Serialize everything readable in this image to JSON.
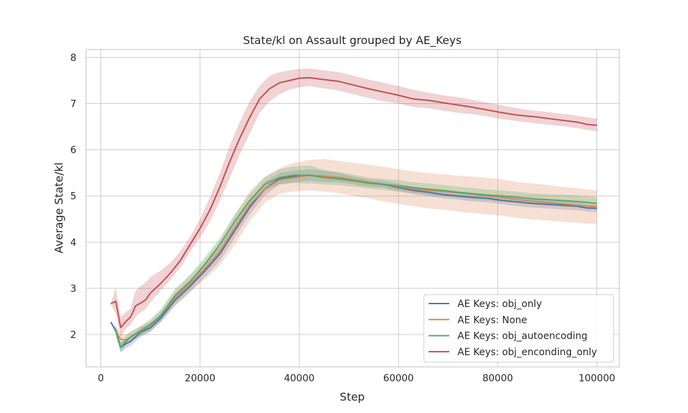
{
  "chart_data": {
    "type": "line",
    "title": "State/kl on Assault grouped by AE_Keys",
    "xlabel": "Step",
    "ylabel": "Average State/kl",
    "xlim": [
      -3000,
      104500
    ],
    "ylim": [
      1.3,
      8.17
    ],
    "xticks": [
      0,
      20000,
      40000,
      60000,
      80000,
      100000
    ],
    "yticks": [
      2,
      3,
      4,
      5,
      6,
      7,
      8
    ],
    "grid": true,
    "legend_position": "lower-right",
    "series": [
      {
        "name": "AE Keys: obj_only",
        "color": "#4c72b0",
        "x": [
          2000,
          3000,
          4000,
          5000,
          6000,
          8000,
          10000,
          12000,
          15000,
          18000,
          21000,
          24000,
          27000,
          30000,
          33000,
          36000,
          39000,
          42000,
          45000,
          48000,
          51000,
          54000,
          57000,
          60000,
          63000,
          66000,
          69000,
          72000,
          75000,
          78000,
          81000,
          84000,
          87000,
          90000,
          93000,
          96000,
          98000,
          100000
        ],
        "y": [
          2.27,
          2.08,
          1.72,
          1.8,
          1.85,
          2.05,
          2.15,
          2.35,
          2.75,
          3.05,
          3.38,
          3.75,
          4.25,
          4.75,
          5.15,
          5.38,
          5.42,
          5.45,
          5.42,
          5.4,
          5.33,
          5.28,
          5.25,
          5.18,
          5.12,
          5.08,
          5.03,
          5.0,
          4.97,
          4.95,
          4.9,
          4.87,
          4.84,
          4.82,
          4.8,
          4.78,
          4.74,
          4.73
        ],
        "lower": [
          2.27,
          2.0,
          1.62,
          1.7,
          1.75,
          1.95,
          2.05,
          2.25,
          2.62,
          2.92,
          3.25,
          3.6,
          4.1,
          4.6,
          5.0,
          5.25,
          5.3,
          5.33,
          5.3,
          5.3,
          5.25,
          5.2,
          5.18,
          5.1,
          5.04,
          5.0,
          4.95,
          4.92,
          4.88,
          4.86,
          4.82,
          4.78,
          4.75,
          4.73,
          4.71,
          4.69,
          4.66,
          4.65
        ],
        "upper": [
          2.27,
          2.16,
          1.82,
          1.9,
          1.95,
          2.15,
          2.25,
          2.45,
          2.88,
          3.18,
          3.52,
          3.9,
          4.4,
          4.9,
          5.3,
          5.5,
          5.55,
          5.58,
          5.55,
          5.5,
          5.42,
          5.36,
          5.33,
          5.26,
          5.2,
          5.16,
          5.11,
          5.08,
          5.06,
          5.04,
          4.99,
          4.96,
          4.93,
          4.91,
          4.89,
          4.87,
          4.82,
          4.81
        ]
      },
      {
        "name": "AE Keys: None",
        "color": "#dd8452",
        "x": [
          3000,
          4000,
          5000,
          6000,
          8000,
          10000,
          12000,
          15000,
          18000,
          21000,
          24000,
          27000,
          30000,
          33000,
          36000,
          39000,
          42000,
          45000,
          48000,
          51000,
          54000,
          57000,
          60000,
          63000,
          66000,
          69000,
          72000,
          75000,
          78000,
          81000,
          84000,
          87000,
          90000,
          93000,
          96000,
          98000,
          100000
        ],
        "y": [
          2.05,
          1.9,
          1.88,
          1.95,
          2.07,
          2.2,
          2.4,
          2.8,
          3.1,
          3.42,
          3.8,
          4.3,
          4.8,
          5.15,
          5.35,
          5.4,
          5.45,
          5.43,
          5.4,
          5.35,
          5.3,
          5.25,
          5.2,
          5.15,
          5.12,
          5.1,
          5.07,
          5.04,
          5.0,
          4.97,
          4.92,
          4.89,
          4.86,
          4.83,
          4.8,
          4.78,
          4.77
        ],
        "lower": [
          1.95,
          1.8,
          1.78,
          1.85,
          1.97,
          2.08,
          2.28,
          2.65,
          2.92,
          3.2,
          3.5,
          3.95,
          4.45,
          4.85,
          5.05,
          5.1,
          5.12,
          5.1,
          5.06,
          5.0,
          4.95,
          4.88,
          4.83,
          4.78,
          4.73,
          4.7,
          4.66,
          4.63,
          4.6,
          4.57,
          4.52,
          4.49,
          4.47,
          4.44,
          4.42,
          4.4,
          4.4
        ],
        "upper": [
          2.18,
          2.02,
          2.0,
          2.07,
          2.18,
          2.3,
          2.52,
          2.95,
          3.28,
          3.62,
          4.05,
          4.6,
          5.1,
          5.42,
          5.6,
          5.72,
          5.78,
          5.8,
          5.76,
          5.72,
          5.68,
          5.63,
          5.58,
          5.53,
          5.5,
          5.47,
          5.44,
          5.42,
          5.39,
          5.36,
          5.3,
          5.27,
          5.24,
          5.2,
          5.17,
          5.14,
          5.12
        ]
      },
      {
        "name": "AE Keys: obj_autoencoding",
        "color": "#55a868",
        "x": [
          3000,
          4000,
          5000,
          6000,
          8000,
          10000,
          12000,
          15000,
          18000,
          21000,
          24000,
          27000,
          30000,
          33000,
          36000,
          39000,
          42000,
          45000,
          48000,
          51000,
          54000,
          57000,
          60000,
          63000,
          66000,
          69000,
          72000,
          75000,
          78000,
          81000,
          84000,
          87000,
          90000,
          93000,
          96000,
          98000,
          100000
        ],
        "y": [
          2.1,
          1.72,
          1.85,
          1.95,
          2.08,
          2.22,
          2.4,
          2.85,
          3.15,
          3.52,
          3.95,
          4.45,
          4.9,
          5.25,
          5.4,
          5.45,
          5.45,
          5.4,
          5.37,
          5.33,
          5.28,
          5.25,
          5.22,
          5.18,
          5.15,
          5.12,
          5.08,
          5.05,
          5.02,
          5.0,
          4.97,
          4.94,
          4.92,
          4.9,
          4.88,
          4.86,
          4.84
        ],
        "lower": [
          1.95,
          1.6,
          1.75,
          1.85,
          1.98,
          2.1,
          2.28,
          2.7,
          3.0,
          3.38,
          3.8,
          4.3,
          4.75,
          5.1,
          5.25,
          5.28,
          5.27,
          5.25,
          5.23,
          5.2,
          5.16,
          5.13,
          5.1,
          5.06,
          5.03,
          5.0,
          4.96,
          4.93,
          4.9,
          4.88,
          4.85,
          4.82,
          4.79,
          4.77,
          4.75,
          4.73,
          4.71
        ],
        "upper": [
          2.25,
          1.85,
          1.96,
          2.06,
          2.18,
          2.34,
          2.54,
          3.0,
          3.3,
          3.68,
          4.1,
          4.6,
          5.05,
          5.4,
          5.58,
          5.64,
          5.66,
          5.56,
          5.52,
          5.46,
          5.4,
          5.37,
          5.34,
          5.3,
          5.27,
          5.24,
          5.2,
          5.17,
          5.14,
          5.12,
          5.09,
          5.06,
          5.04,
          5.03,
          5.01,
          4.99,
          4.97
        ]
      },
      {
        "name": "AE Keys: obj_enconding_only",
        "color": "#c44e52",
        "x": [
          2000,
          3000,
          4000,
          5000,
          6000,
          7000,
          8000,
          9000,
          10000,
          12000,
          14000,
          16000,
          18000,
          20000,
          22000,
          24000,
          26000,
          28000,
          30000,
          32000,
          34000,
          36000,
          38000,
          40000,
          42000,
          45000,
          48000,
          51000,
          54000,
          57000,
          60000,
          63000,
          66000,
          69000,
          72000,
          75000,
          78000,
          81000,
          84000,
          87000,
          90000,
          93000,
          96000,
          98000,
          100000
        ],
        "y": [
          2.67,
          2.72,
          2.15,
          2.28,
          2.38,
          2.62,
          2.68,
          2.75,
          2.9,
          3.1,
          3.33,
          3.6,
          3.95,
          4.3,
          4.7,
          5.2,
          5.75,
          6.25,
          6.7,
          7.1,
          7.32,
          7.45,
          7.5,
          7.55,
          7.56,
          7.52,
          7.48,
          7.4,
          7.32,
          7.25,
          7.18,
          7.1,
          7.07,
          7.02,
          6.97,
          6.92,
          6.86,
          6.8,
          6.75,
          6.72,
          6.68,
          6.64,
          6.6,
          6.55,
          6.53
        ],
        "lower": [
          2.67,
          2.45,
          1.95,
          2.12,
          2.22,
          2.38,
          2.48,
          2.55,
          2.7,
          2.95,
          3.18,
          3.45,
          3.8,
          4.1,
          4.45,
          4.9,
          5.4,
          5.9,
          6.35,
          6.8,
          7.05,
          7.2,
          7.3,
          7.35,
          7.38,
          7.33,
          7.28,
          7.2,
          7.12,
          7.05,
          7.0,
          6.93,
          6.9,
          6.85,
          6.8,
          6.77,
          6.72,
          6.66,
          6.62,
          6.58,
          6.55,
          6.51,
          6.47,
          6.43,
          6.4
        ],
        "upper": [
          2.67,
          3.02,
          2.38,
          2.48,
          2.56,
          2.95,
          3.05,
          3.12,
          3.25,
          3.38,
          3.55,
          3.8,
          4.12,
          4.5,
          4.98,
          5.5,
          6.1,
          6.6,
          7.05,
          7.38,
          7.6,
          7.68,
          7.72,
          7.75,
          7.76,
          7.72,
          7.68,
          7.6,
          7.52,
          7.45,
          7.38,
          7.3,
          7.24,
          7.18,
          7.14,
          7.08,
          7.02,
          6.96,
          6.9,
          6.85,
          6.82,
          6.78,
          6.74,
          6.7,
          6.68
        ]
      }
    ]
  }
}
